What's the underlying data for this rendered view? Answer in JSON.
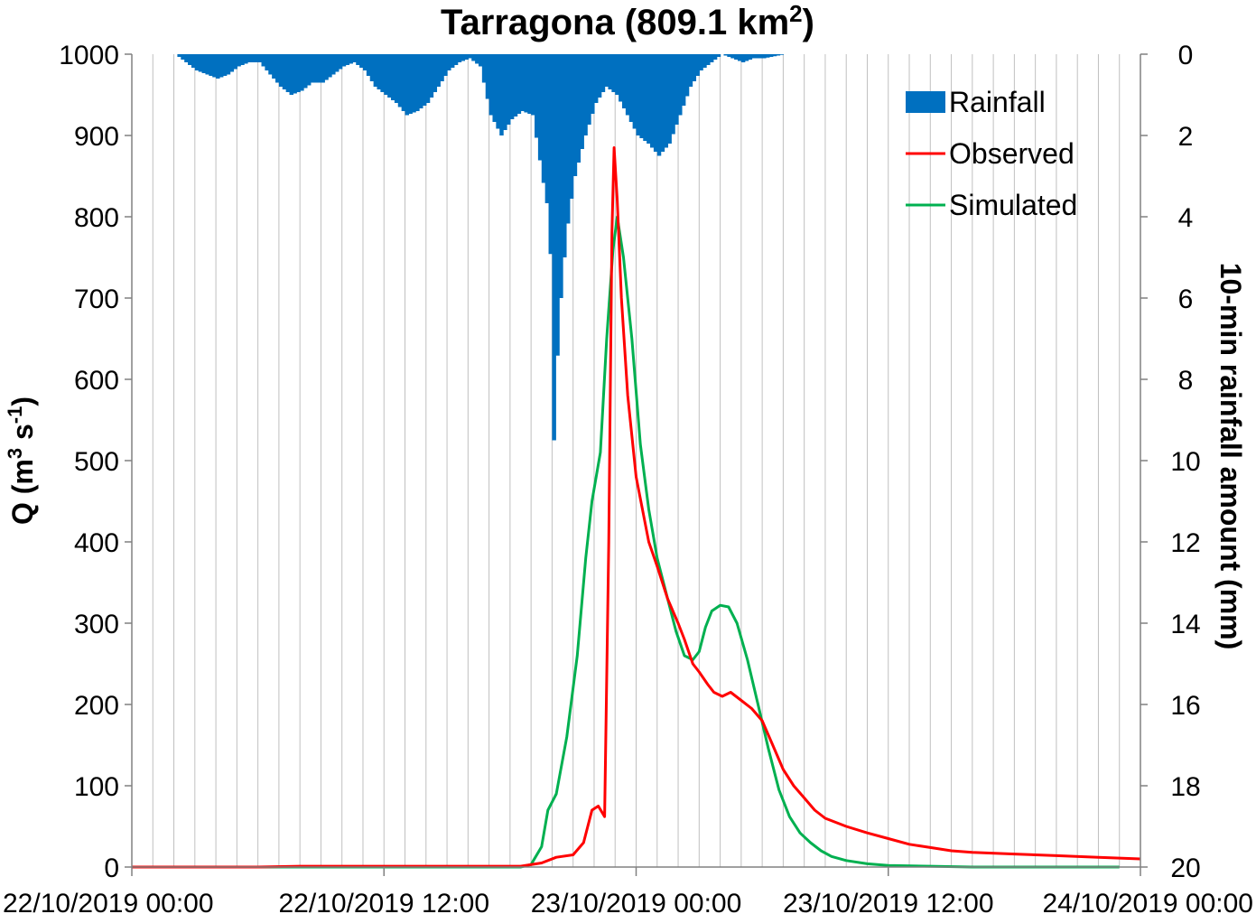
{
  "chart_data": {
    "type": "line",
    "title": "Tarragona (809.1 km",
    "title_sup": "2",
    "title_end": ")",
    "ylabel": "Q (m",
    "ylabel_sup1": "3",
    "ylabel_mid": " s",
    "ylabel_sup2": "-1",
    "ylabel_end": ")",
    "y2label": "10-min rainfall amount (mm)",
    "xlim_hours": [
      0,
      48
    ],
    "ylim": [
      0,
      1000
    ],
    "y2lim": [
      0,
      20
    ],
    "y2_inverted": true,
    "grid": "vertical every hour",
    "legend_position": "top-right",
    "x_ticks": [
      {
        "hour": 0,
        "label": "22/10/2019 00:00"
      },
      {
        "hour": 12,
        "label": "22/10/2019 12:00"
      },
      {
        "hour": 24,
        "label": "23/10/2019 00:00"
      },
      {
        "hour": 36,
        "label": "23/10/2019 12:00"
      },
      {
        "hour": 48,
        "label": "24/10/2019 00:00"
      }
    ],
    "y_ticks": [
      "0",
      "100",
      "200",
      "300",
      "400",
      "500",
      "600",
      "700",
      "800",
      "900",
      "1000"
    ],
    "y2_ticks": [
      "0",
      "2",
      "4",
      "6",
      "8",
      "10",
      "12",
      "14",
      "16",
      "18",
      "20"
    ],
    "legend": [
      {
        "label": "Rainfall",
        "color": "#0070C0",
        "kind": "bar"
      },
      {
        "label": "Observed",
        "color": "#FF0000",
        "kind": "line"
      },
      {
        "label": "Simulated",
        "color": "#00B050",
        "kind": "line"
      }
    ],
    "series": [
      {
        "name": "Observed",
        "color": "#FF0000",
        "points": [
          [
            0,
            0
          ],
          [
            6,
            0
          ],
          [
            8,
            1
          ],
          [
            12,
            1
          ],
          [
            17,
            1
          ],
          [
            18.5,
            1
          ],
          [
            19.5,
            5
          ],
          [
            20.2,
            12
          ],
          [
            21,
            15
          ],
          [
            21.5,
            30
          ],
          [
            21.9,
            70
          ],
          [
            22.2,
            75
          ],
          [
            22.5,
            62
          ],
          [
            22.7,
            400
          ],
          [
            22.85,
            780
          ],
          [
            22.95,
            885
          ],
          [
            23.1,
            820
          ],
          [
            23.3,
            700
          ],
          [
            23.6,
            580
          ],
          [
            24,
            480
          ],
          [
            24.3,
            440
          ],
          [
            24.6,
            400
          ],
          [
            25,
            370
          ],
          [
            25.5,
            330
          ],
          [
            26,
            300
          ],
          [
            26.3,
            280
          ],
          [
            26.7,
            250
          ],
          [
            27,
            240
          ],
          [
            27.4,
            225
          ],
          [
            27.7,
            215
          ],
          [
            28.1,
            210
          ],
          [
            28.5,
            215
          ],
          [
            29,
            205
          ],
          [
            29.5,
            195
          ],
          [
            30,
            180
          ],
          [
            30.5,
            150
          ],
          [
            31,
            120
          ],
          [
            31.5,
            100
          ],
          [
            32,
            85
          ],
          [
            32.5,
            70
          ],
          [
            33,
            60
          ],
          [
            34,
            50
          ],
          [
            35,
            42
          ],
          [
            36,
            35
          ],
          [
            37,
            28
          ],
          [
            38,
            24
          ],
          [
            39,
            20
          ],
          [
            40,
            18
          ],
          [
            42,
            16
          ],
          [
            44,
            14
          ],
          [
            46,
            12
          ],
          [
            48,
            10
          ]
        ]
      },
      {
        "name": "Simulated",
        "color": "#00B050",
        "points": [
          [
            0,
            0
          ],
          [
            18.5,
            0
          ],
          [
            19,
            3
          ],
          [
            19.5,
            25
          ],
          [
            19.8,
            70
          ],
          [
            20.2,
            90
          ],
          [
            20.7,
            160
          ],
          [
            21.2,
            260
          ],
          [
            21.6,
            380
          ],
          [
            21.9,
            450
          ],
          [
            22.3,
            510
          ],
          [
            22.6,
            650
          ],
          [
            22.9,
            760
          ],
          [
            23.1,
            800
          ],
          [
            23.4,
            750
          ],
          [
            23.8,
            650
          ],
          [
            24.2,
            520
          ],
          [
            24.6,
            440
          ],
          [
            25,
            380
          ],
          [
            25.5,
            330
          ],
          [
            25.9,
            290
          ],
          [
            26.3,
            260
          ],
          [
            26.7,
            255
          ],
          [
            27,
            265
          ],
          [
            27.3,
            295
          ],
          [
            27.6,
            315
          ],
          [
            28,
            322
          ],
          [
            28.4,
            320
          ],
          [
            28.8,
            300
          ],
          [
            29.3,
            255
          ],
          [
            29.8,
            200
          ],
          [
            30.3,
            145
          ],
          [
            30.8,
            95
          ],
          [
            31.3,
            62
          ],
          [
            31.8,
            42
          ],
          [
            32.3,
            30
          ],
          [
            32.8,
            20
          ],
          [
            33.3,
            13
          ],
          [
            34,
            8
          ],
          [
            35,
            4
          ],
          [
            36,
            2
          ],
          [
            38,
            1
          ],
          [
            40,
            0
          ],
          [
            47,
            0
          ]
        ]
      },
      {
        "name": "Rainfall",
        "color": "#0070C0",
        "points": [
          [
            0,
            0
          ],
          [
            2,
            0
          ],
          [
            2.5,
            0.2
          ],
          [
            3,
            0.4
          ],
          [
            3.5,
            0.5
          ],
          [
            4,
            0.6
          ],
          [
            4.5,
            0.5
          ],
          [
            5,
            0.3
          ],
          [
            5.5,
            0.2
          ],
          [
            6,
            0.2
          ],
          [
            6.5,
            0.5
          ],
          [
            7,
            0.8
          ],
          [
            7.5,
            1
          ],
          [
            8,
            0.9
          ],
          [
            8.5,
            0.7
          ],
          [
            9,
            0.7
          ],
          [
            9.5,
            0.5
          ],
          [
            10,
            0.3
          ],
          [
            10.5,
            0.2
          ],
          [
            11,
            0.4
          ],
          [
            11.5,
            0.8
          ],
          [
            12,
            1
          ],
          [
            12.5,
            1.2
          ],
          [
            13,
            1.5
          ],
          [
            13.5,
            1.4
          ],
          [
            14,
            1.2
          ],
          [
            14.5,
            0.8
          ],
          [
            15,
            0.4
          ],
          [
            15.5,
            0.2
          ],
          [
            16,
            0.1
          ],
          [
            16.5,
            0.3
          ],
          [
            17,
            1.5
          ],
          [
            17.5,
            2
          ],
          [
            18,
            1.6
          ],
          [
            18.5,
            1.4
          ],
          [
            19,
            1.5
          ],
          [
            19.3,
            2.5
          ],
          [
            19.6,
            3.5
          ],
          [
            19.8,
            4
          ],
          [
            20,
            9.5
          ],
          [
            20.2,
            7
          ],
          [
            20.4,
            5.5
          ],
          [
            20.7,
            4
          ],
          [
            21,
            3
          ],
          [
            21.5,
            2
          ],
          [
            22,
            1.2
          ],
          [
            22.5,
            0.8
          ],
          [
            23,
            1
          ],
          [
            23.5,
            1.5
          ],
          [
            24,
            2
          ],
          [
            24.5,
            2.2
          ],
          [
            25,
            2.5
          ],
          [
            25.5,
            2.2
          ],
          [
            26,
            1.5
          ],
          [
            26.5,
            0.8
          ],
          [
            27,
            0.4
          ],
          [
            27.5,
            0.2
          ],
          [
            28,
            0
          ],
          [
            28.5,
            0.1
          ],
          [
            29,
            0.2
          ],
          [
            29.5,
            0.1
          ],
          [
            30,
            0.1
          ],
          [
            31,
            0
          ]
        ]
      }
    ]
  }
}
